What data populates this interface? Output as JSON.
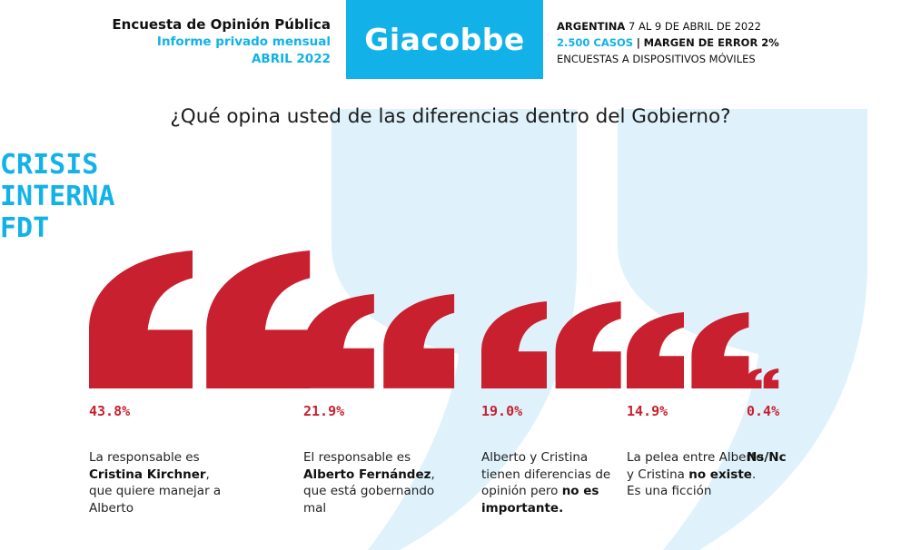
{
  "header": {
    "survey_title": "Encuesta de Opinión Pública",
    "report_type": "Informe privado mensual",
    "report_date": "ABRIL 2022",
    "brand": "Giacobbe",
    "country": "ARGENTINA",
    "field_dates": "7 AL 9 DE ABRIL DE 2022",
    "cases": "2.500 CASOS",
    "margin": "MARGEN DE ERROR 2%",
    "method": "ENCUESTAS A DISPOSITIVOS MÓVILES"
  },
  "section_tag": [
    "CRISIS",
    "INTERNA",
    "FDT"
  ],
  "colors": {
    "accent": "#12b2e8",
    "quote": "#c9202f",
    "watermark": "#d9f1fb"
  },
  "chart_data": {
    "type": "bar",
    "title": "¿Qué opina usted de las diferencias dentro del Gobierno?",
    "unit": "%",
    "categories": [
      "La responsable es Cristina Kirchner, que quiere manejar a Alberto",
      "El responsable es Alberto Fernández, que está gobernando mal",
      "Alberto y Cristina tienen diferencias de opinión pero no es importante.",
      "La pelea entre Alberto y Cristina no existe. Es una ficción",
      "Ns/Nc"
    ],
    "values": [
      43.8,
      21.9,
      19.0,
      14.9,
      0.4
    ],
    "value_labels": [
      "43.8%",
      "21.9%",
      "19.0%",
      "14.9%",
      "0.4%"
    ],
    "descriptions": [
      [
        {
          "t": "La responsable es "
        },
        {
          "t": "Cristina Kirchner",
          "b": true
        },
        {
          "t": ", que quiere manejar a Alberto"
        }
      ],
      [
        {
          "t": "El responsable es "
        },
        {
          "t": "Alberto Fernández",
          "b": true
        },
        {
          "t": ", que está gobernando mal"
        }
      ],
      [
        {
          "t": "Alberto y Cristina tienen diferencias de opinión pero "
        },
        {
          "t": "no es importante.",
          "b": true
        }
      ],
      [
        {
          "t": "La pelea entre Alberto y Cristina "
        },
        {
          "t": "no existe",
          "b": true
        },
        {
          "t": ". Es una ficción"
        }
      ],
      [
        {
          "t": "Ns/Nc",
          "b": true
        }
      ]
    ]
  }
}
